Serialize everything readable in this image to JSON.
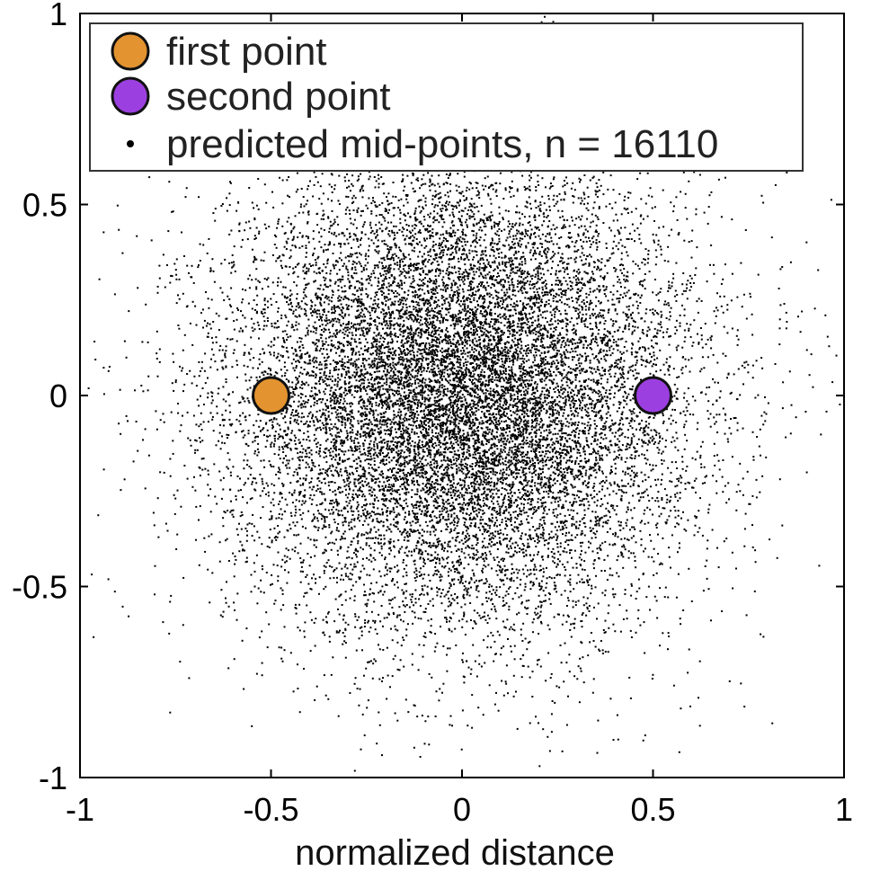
{
  "chart_data": {
    "type": "scatter",
    "title": "",
    "xlabel": "normalized distance",
    "ylabel": "",
    "xlim": [
      -1,
      1
    ],
    "ylim": [
      -1,
      1
    ],
    "x_ticks": [
      -1,
      -0.5,
      0,
      0.5,
      1
    ],
    "x_tick_labels": [
      "-1",
      "-0.5",
      "0",
      "0.5",
      "1"
    ],
    "y_ticks": [
      1,
      0.5,
      0,
      -0.5,
      -1
    ],
    "y_tick_labels": [
      "1",
      "0.5",
      "0",
      "-0.5",
      "-1"
    ],
    "grid": false,
    "legend_position": "top-left",
    "series": [
      {
        "name": "first point",
        "marker": "circle",
        "color": "#E39330",
        "points": [
          [
            -0.5,
            0
          ]
        ]
      },
      {
        "name": "second point",
        "marker": "circle",
        "color": "#9C3FE0",
        "points": [
          [
            0.5,
            0
          ]
        ]
      },
      {
        "name": "predicted mid-points, n = 16110",
        "marker": "dot",
        "color": "#000000",
        "count": 16110,
        "distribution": {
          "center": [
            0,
            0
          ],
          "spread_sd": 0.3
        }
      }
    ]
  }
}
